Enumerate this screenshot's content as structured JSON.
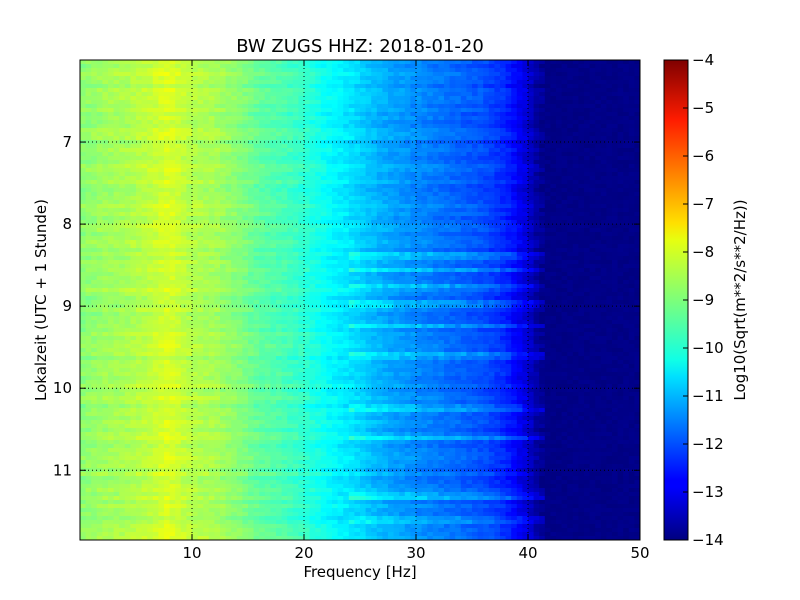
{
  "chart_data": {
    "type": "heatmap",
    "title": "BW ZUGS HHZ: 2018-01-20",
    "xlabel": "Frequency [Hz]",
    "ylabel": "Lokalzeit (UTC + 1 Stunde)",
    "xlim": [
      0,
      50
    ],
    "ylim": [
      6.0,
      11.85
    ],
    "y_inverted": true,
    "x_ticks": [
      10,
      20,
      30,
      40,
      50
    ],
    "y_ticks": [
      7,
      8,
      9,
      10,
      11
    ],
    "grid": true,
    "colormap": "jet",
    "colorbar": {
      "label": "Log10(Sqrt(m**2/s**2/Hz))",
      "range": [
        -14,
        -4
      ],
      "ticks": [
        -4,
        -5,
        -6,
        -7,
        -8,
        -9,
        -10,
        -11,
        -12,
        -13,
        -14
      ]
    },
    "frequency_profile": {
      "frequency_hz": [
        0,
        2,
        4,
        6,
        8,
        10,
        12,
        14,
        16,
        18,
        20,
        22,
        24,
        26,
        28,
        30,
        32,
        34,
        36,
        38,
        40,
        41,
        42,
        44,
        46,
        48,
        50
      ],
      "log10_amplitude": [
        -8.9,
        -8.7,
        -8.6,
        -8.4,
        -8.1,
        -8.5,
        -8.6,
        -8.9,
        -9.3,
        -9.5,
        -9.8,
        -10.2,
        -10.5,
        -10.9,
        -11.2,
        -11.4,
        -11.6,
        -11.8,
        -12.0,
        -12.4,
        -13.2,
        -13.8,
        -14.0,
        -14.0,
        -14.0,
        -14.0,
        -14.0
      ]
    },
    "notable_time_bands_hours": [
      8.4,
      8.55,
      8.75,
      8.98,
      9.25,
      9.6,
      10.25,
      10.6,
      11.3,
      11.6
    ]
  }
}
